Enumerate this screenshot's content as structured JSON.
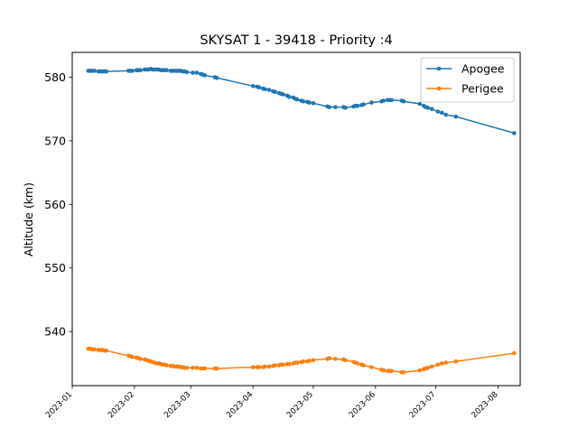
{
  "chart_data": {
    "type": "line",
    "title": "SKYSAT 1 - 39418 - Priority :4",
    "xlabel": "",
    "ylabel": "Altitude (km)",
    "x_ticks": [
      "2023-01",
      "2023-02",
      "2023-03",
      "2023-04",
      "2023-05",
      "2023-06",
      "2023-07",
      "2023-08"
    ],
    "y_ticks": [
      540,
      550,
      560,
      570,
      580
    ],
    "xlim": [
      "2023-01-01",
      "2023-08-12"
    ],
    "ylim": [
      531.5,
      583.9
    ],
    "grid": false,
    "legend_position": "top-right",
    "series": [
      {
        "name": "Apogee",
        "color": "#1f77b4",
        "x": [
          "2023-01-09",
          "2023-01-10",
          "2023-01-11",
          "2023-01-12",
          "2023-01-14",
          "2023-01-15",
          "2023-01-16",
          "2023-01-17",
          "2023-01-18",
          "2023-01-29",
          "2023-01-30",
          "2023-01-31",
          "2023-02-02",
          "2023-02-03",
          "2023-02-04",
          "2023-02-06",
          "2023-02-07",
          "2023-02-08",
          "2023-02-09",
          "2023-02-10",
          "2023-02-11",
          "2023-02-12",
          "2023-02-13",
          "2023-02-14",
          "2023-02-15",
          "2023-02-16",
          "2023-02-17",
          "2023-02-19",
          "2023-02-20",
          "2023-02-21",
          "2023-02-22",
          "2023-02-23",
          "2023-02-24",
          "2023-02-25",
          "2023-02-26",
          "2023-02-27",
          "2023-03-02",
          "2023-03-04",
          "2023-03-06",
          "2023-03-07",
          "2023-03-08",
          "2023-03-13",
          "2023-03-14",
          "2023-04-01",
          "2023-04-03",
          "2023-04-04",
          "2023-04-06",
          "2023-04-07",
          "2023-04-09",
          "2023-04-11",
          "2023-04-12",
          "2023-04-14",
          "2023-04-15",
          "2023-04-16",
          "2023-04-18",
          "2023-04-19",
          "2023-04-21",
          "2023-04-22",
          "2023-04-23",
          "2023-04-25",
          "2023-04-26",
          "2023-04-28",
          "2023-04-29",
          "2023-05-01",
          "2023-05-08",
          "2023-05-09",
          "2023-05-12",
          "2023-05-16",
          "2023-05-17",
          "2023-05-21",
          "2023-05-22",
          "2023-05-23",
          "2023-05-25",
          "2023-05-26",
          "2023-05-30",
          "2023-06-04",
          "2023-06-05",
          "2023-06-07",
          "2023-06-08",
          "2023-06-09",
          "2023-06-14",
          "2023-06-15",
          "2023-06-23",
          "2023-06-25",
          "2023-06-26",
          "2023-06-27",
          "2023-06-29",
          "2023-07-02",
          "2023-07-04",
          "2023-07-06",
          "2023-07-11",
          "2023-08-09"
        ],
        "values": [
          581.0,
          581.0,
          581.0,
          581.0,
          580.9,
          580.9,
          580.9,
          580.9,
          580.9,
          581.0,
          581.0,
          581.0,
          581.1,
          581.1,
          581.1,
          581.2,
          581.2,
          581.2,
          581.3,
          581.2,
          581.2,
          581.2,
          581.2,
          581.1,
          581.1,
          581.1,
          581.1,
          581.0,
          581.0,
          581.0,
          581.0,
          581.0,
          581.0,
          580.9,
          580.9,
          580.8,
          580.7,
          580.7,
          580.5,
          580.4,
          580.3,
          580.0,
          579.9,
          578.6,
          578.5,
          578.4,
          578.2,
          578.1,
          578.0,
          577.8,
          577.7,
          577.5,
          577.4,
          577.3,
          577.1,
          576.9,
          576.8,
          576.6,
          576.5,
          576.3,
          576.2,
          576.1,
          576.0,
          575.9,
          575.4,
          575.3,
          575.3,
          575.3,
          575.2,
          575.4,
          575.5,
          575.5,
          575.6,
          575.7,
          576.0,
          576.2,
          576.3,
          576.4,
          576.4,
          576.4,
          576.3,
          576.2,
          575.8,
          575.5,
          575.3,
          575.2,
          575.0,
          574.6,
          574.4,
          574.1,
          573.8,
          571.2
        ]
      },
      {
        "name": "Perigee",
        "color": "#ff7f0e",
        "x": [
          "2023-01-09",
          "2023-01-10",
          "2023-01-11",
          "2023-01-12",
          "2023-01-14",
          "2023-01-15",
          "2023-01-16",
          "2023-01-17",
          "2023-01-18",
          "2023-01-29",
          "2023-01-30",
          "2023-01-31",
          "2023-02-02",
          "2023-02-03",
          "2023-02-04",
          "2023-02-06",
          "2023-02-07",
          "2023-02-08",
          "2023-02-09",
          "2023-02-10",
          "2023-02-11",
          "2023-02-12",
          "2023-02-13",
          "2023-02-14",
          "2023-02-15",
          "2023-02-16",
          "2023-02-17",
          "2023-02-19",
          "2023-02-20",
          "2023-02-21",
          "2023-02-22",
          "2023-02-23",
          "2023-02-24",
          "2023-02-25",
          "2023-02-26",
          "2023-02-27",
          "2023-03-02",
          "2023-03-04",
          "2023-03-06",
          "2023-03-07",
          "2023-03-08",
          "2023-03-13",
          "2023-03-14",
          "2023-04-01",
          "2023-04-03",
          "2023-04-04",
          "2023-04-06",
          "2023-04-07",
          "2023-04-09",
          "2023-04-11",
          "2023-04-12",
          "2023-04-14",
          "2023-04-15",
          "2023-04-16",
          "2023-04-18",
          "2023-04-19",
          "2023-04-21",
          "2023-04-22",
          "2023-04-23",
          "2023-04-25",
          "2023-04-26",
          "2023-04-28",
          "2023-04-29",
          "2023-05-01",
          "2023-05-08",
          "2023-05-09",
          "2023-05-12",
          "2023-05-16",
          "2023-05-17",
          "2023-05-21",
          "2023-05-22",
          "2023-05-23",
          "2023-05-25",
          "2023-05-26",
          "2023-05-30",
          "2023-06-04",
          "2023-06-05",
          "2023-06-07",
          "2023-06-08",
          "2023-06-09",
          "2023-06-14",
          "2023-06-15",
          "2023-06-23",
          "2023-06-25",
          "2023-06-26",
          "2023-06-27",
          "2023-06-29",
          "2023-07-02",
          "2023-07-04",
          "2023-07-06",
          "2023-07-11",
          "2023-08-09"
        ],
        "values": [
          537.3,
          537.3,
          537.2,
          537.2,
          537.1,
          537.1,
          537.1,
          537.0,
          537.0,
          536.2,
          536.1,
          536.0,
          535.9,
          535.8,
          535.7,
          535.6,
          535.5,
          535.4,
          535.3,
          535.2,
          535.1,
          535.0,
          535.0,
          534.9,
          534.8,
          534.8,
          534.7,
          534.6,
          534.6,
          534.5,
          534.5,
          534.5,
          534.4,
          534.4,
          534.3,
          534.3,
          534.3,
          534.3,
          534.2,
          534.2,
          534.2,
          534.2,
          534.2,
          534.4,
          534.4,
          534.4,
          534.4,
          534.5,
          534.5,
          534.6,
          534.7,
          534.7,
          534.8,
          534.8,
          534.9,
          534.9,
          535.0,
          535.1,
          535.1,
          535.2,
          535.3,
          535.3,
          535.4,
          535.5,
          535.7,
          535.8,
          535.7,
          535.6,
          535.5,
          535.2,
          535.1,
          535.0,
          534.8,
          534.7,
          534.4,
          534.0,
          533.9,
          533.8,
          533.8,
          533.8,
          533.6,
          533.6,
          533.9,
          534.1,
          534.2,
          534.3,
          534.5,
          534.8,
          535.0,
          535.1,
          535.3,
          536.6
        ]
      }
    ]
  }
}
